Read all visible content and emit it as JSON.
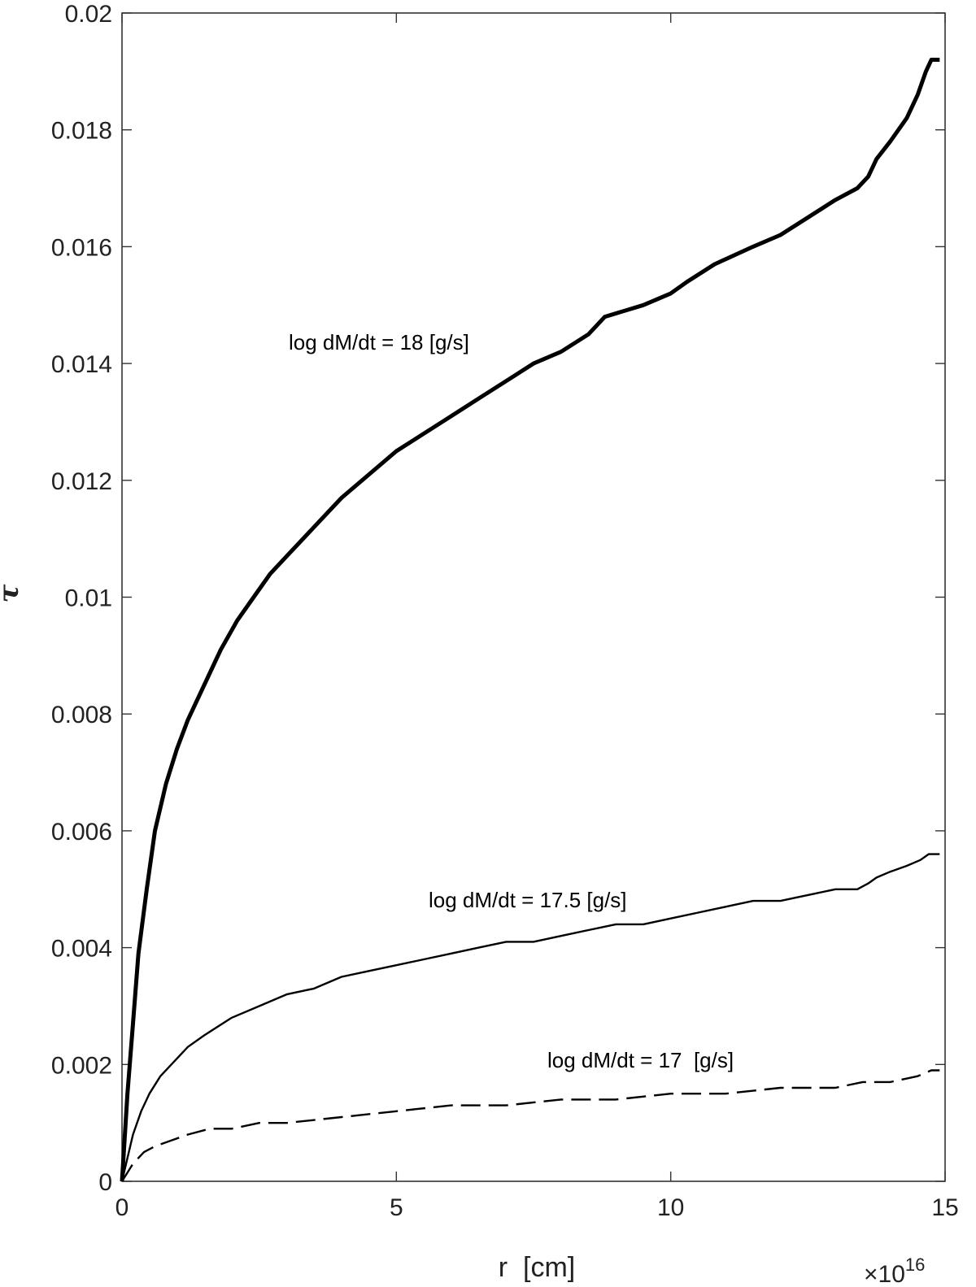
{
  "chart_data": {
    "type": "line",
    "xlabel": "r  [cm]",
    "ylabel": "τ",
    "x_multiplier_label": "×10",
    "x_multiplier_exponent": "16",
    "xlim": [
      0,
      15
    ],
    "ylim": [
      0,
      0.02
    ],
    "xticks": [
      0,
      5,
      10,
      15
    ],
    "xtick_labels": [
      "0",
      "5",
      "10",
      "15"
    ],
    "yticks": [
      0,
      0.002,
      0.004,
      0.006,
      0.008,
      0.01,
      0.012,
      0.014,
      0.016,
      0.018,
      0.02
    ],
    "ytick_labels": [
      "0",
      "0.002",
      "0.004",
      "0.006",
      "0.008",
      "0.01",
      "0.012",
      "0.014",
      "0.016",
      "0.018",
      "0.02"
    ],
    "grid": false,
    "series": [
      {
        "name": "log dM/dt = 18 [g/s]",
        "style": "solid",
        "width": "thick",
        "color": "#000000",
        "x": [
          0,
          0.1,
          0.2,
          0.3,
          0.45,
          0.6,
          0.8,
          1.0,
          1.2,
          1.5,
          1.8,
          2.1,
          2.4,
          2.7,
          3.0,
          3.5,
          4.0,
          4.5,
          5.0,
          5.5,
          6.0,
          6.5,
          7.0,
          7.5,
          8.0,
          8.5,
          8.8,
          9.5,
          10.0,
          10.3,
          10.8,
          11.5,
          12.0,
          12.5,
          13.0,
          13.4,
          13.6,
          13.75,
          14.0,
          14.3,
          14.5,
          14.65,
          14.75,
          14.9
        ],
        "y": [
          0,
          0.0015,
          0.0027,
          0.0039,
          0.005,
          0.006,
          0.0068,
          0.0074,
          0.0079,
          0.0085,
          0.0091,
          0.0096,
          0.01,
          0.0104,
          0.0107,
          0.0112,
          0.0117,
          0.0121,
          0.0125,
          0.0128,
          0.0131,
          0.0134,
          0.0137,
          0.014,
          0.0142,
          0.0145,
          0.0148,
          0.015,
          0.0152,
          0.0154,
          0.0157,
          0.016,
          0.0162,
          0.0165,
          0.0168,
          0.017,
          0.0172,
          0.0175,
          0.0178,
          0.0182,
          0.0186,
          0.019,
          0.0192,
          0.0192
        ]
      },
      {
        "name": "log dM/dt = 17.5 [g/s]",
        "style": "solid",
        "width": "thin",
        "color": "#000000",
        "x": [
          0,
          0.1,
          0.2,
          0.35,
          0.5,
          0.7,
          0.9,
          1.2,
          1.5,
          2.0,
          2.5,
          3.0,
          3.5,
          4.0,
          4.5,
          5.0,
          5.5,
          6.0,
          6.5,
          7.0,
          7.5,
          8.0,
          8.5,
          9.0,
          9.5,
          10.0,
          10.5,
          11.0,
          11.5,
          12.0,
          12.5,
          13.0,
          13.4,
          13.6,
          13.75,
          14.0,
          14.3,
          14.55,
          14.7,
          14.9
        ],
        "y": [
          0,
          0.0004,
          0.0008,
          0.0012,
          0.0015,
          0.0018,
          0.002,
          0.0023,
          0.0025,
          0.0028,
          0.003,
          0.0032,
          0.0033,
          0.0035,
          0.0036,
          0.0037,
          0.0038,
          0.0039,
          0.004,
          0.0041,
          0.0041,
          0.0042,
          0.0043,
          0.0044,
          0.0044,
          0.0045,
          0.0046,
          0.0047,
          0.0048,
          0.0048,
          0.0049,
          0.005,
          0.005,
          0.0051,
          0.0052,
          0.0053,
          0.0054,
          0.0055,
          0.0056,
          0.0056
        ]
      },
      {
        "name": "log dM/dt = 17  [g/s]",
        "style": "dashed",
        "width": "thin",
        "color": "#000000",
        "x": [
          0,
          0.2,
          0.4,
          0.6,
          0.9,
          1.2,
          1.6,
          2.0,
          2.5,
          3.0,
          4.0,
          5.0,
          6.0,
          7.0,
          8.0,
          9.0,
          10.0,
          11.0,
          12.0,
          13.0,
          13.5,
          14.0,
          14.5,
          14.75,
          14.9
        ],
        "y": [
          0,
          0.0003,
          0.0005,
          0.0006,
          0.0007,
          0.0008,
          0.0009,
          0.0009,
          0.001,
          0.001,
          0.0011,
          0.0012,
          0.0013,
          0.0013,
          0.0014,
          0.0014,
          0.0015,
          0.0015,
          0.0016,
          0.0016,
          0.0017,
          0.0017,
          0.0018,
          0.0019,
          0.0019
        ]
      }
    ]
  }
}
